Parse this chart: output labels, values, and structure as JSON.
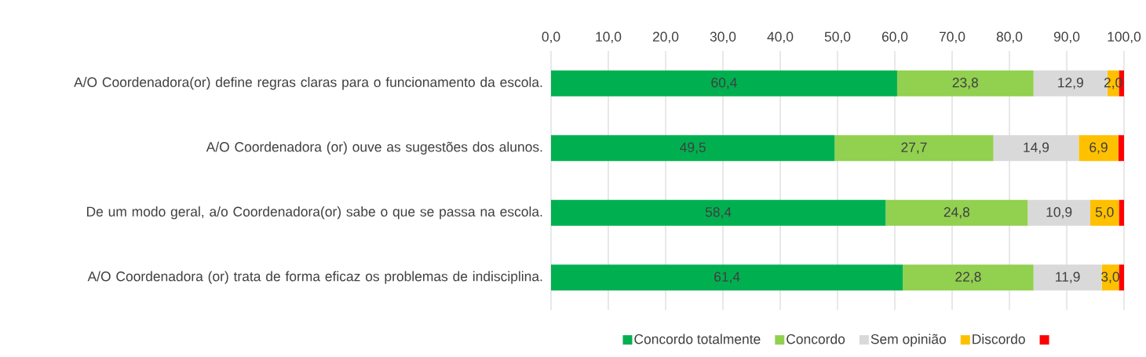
{
  "chart_data": {
    "type": "bar",
    "orientation": "horizontal",
    "stacked": true,
    "categories": [
      "A/O Coordenadora(or) define regras claras para o funcionamento da escola.",
      "A/O Coordenadora (or) ouve as sugestões dos alunos.",
      "De um modo geral, a/o Coordenadora(or) sabe o que se passa na escola.",
      "A/O Coordenadora (or) trata de forma eficaz os problemas de indisciplina."
    ],
    "series": [
      {
        "name": "Concordo totalmente",
        "color": "#00b050",
        "values": [
          60.4,
          49.5,
          58.4,
          61.4
        ],
        "value_labels": [
          "60,4",
          "49,5",
          "58,4",
          "61,4"
        ]
      },
      {
        "name": "Concordo",
        "color": "#92d050",
        "values": [
          23.8,
          27.7,
          24.8,
          22.8
        ],
        "value_labels": [
          "23,8",
          "27,7",
          "24,8",
          "22,8"
        ]
      },
      {
        "name": "Sem opinião",
        "color": "#d9d9d9",
        "values": [
          12.9,
          14.9,
          10.9,
          11.9
        ],
        "value_labels": [
          "12,9",
          "14,9",
          "10,9",
          "11,9"
        ]
      },
      {
        "name": "Discordo",
        "color": "#ffc000",
        "values": [
          2.0,
          6.9,
          5.0,
          3.0
        ],
        "value_labels": [
          "2,0",
          "6,9",
          "5,0",
          "3,0"
        ]
      },
      {
        "color": "#ff0000",
        "values": [
          0.9,
          1.0,
          0.9,
          0.9
        ]
      }
    ],
    "xlim": [
      0,
      100
    ],
    "xticks": [
      {
        "value": 0,
        "label": "0,0"
      },
      {
        "value": 10,
        "label": "10,0"
      },
      {
        "value": 20,
        "label": "20,0"
      },
      {
        "value": 30,
        "label": "30,0"
      },
      {
        "value": 40,
        "label": "40,0"
      },
      {
        "value": 50,
        "label": "50,0"
      },
      {
        "value": 60,
        "label": "60,0"
      },
      {
        "value": 70,
        "label": "70,0"
      },
      {
        "value": 80,
        "label": "80,0"
      },
      {
        "value": 90,
        "label": "90,0"
      },
      {
        "value": 100,
        "label": "100,0"
      }
    ],
    "grid": "x",
    "legend": "bottom"
  }
}
